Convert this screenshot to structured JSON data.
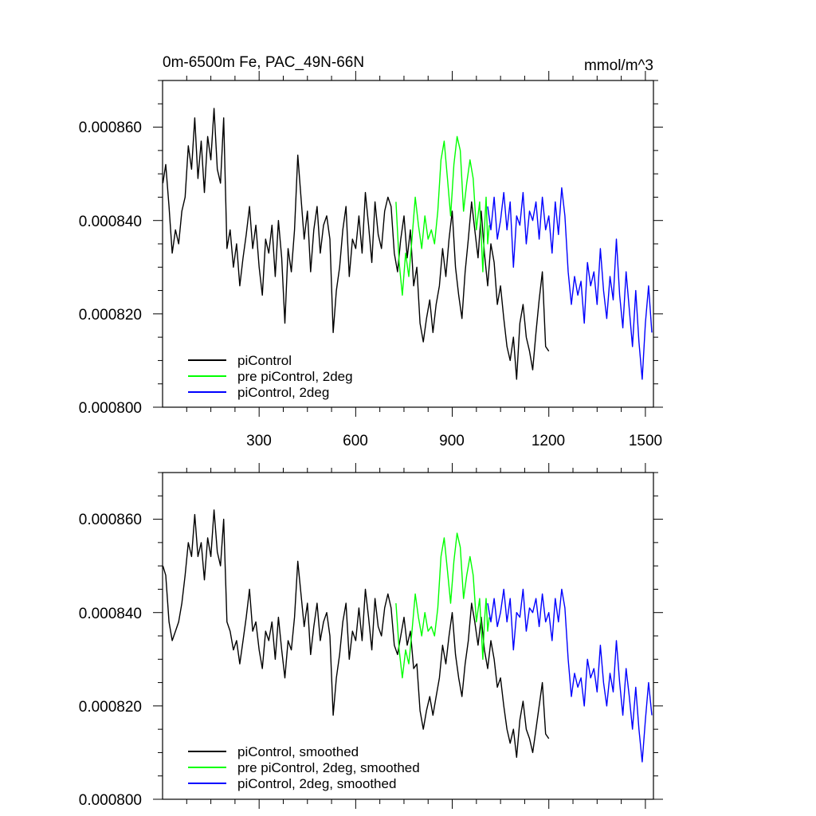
{
  "chart_data": [
    {
      "type": "line",
      "title_left": "0m-6500m Fe, PAC_49N-66N",
      "title_right": "mmol/m^3",
      "xlabel": "",
      "ylabel": "",
      "xlim": [
        0,
        1525
      ],
      "ylim": [
        0.0008,
        0.00087
      ],
      "x_ticks": [
        300,
        600,
        900,
        1200,
        1500
      ],
      "x_tick_labels": [
        "300",
        "600",
        "900",
        "1200",
        "1500"
      ],
      "y_ticks": [
        0.0008,
        0.00082,
        0.00084,
        0.00086
      ],
      "y_tick_labels": [
        "0.000800",
        "0.000820",
        "0.000840",
        "0.000860"
      ],
      "legend_position": "bottom-left",
      "series": [
        {
          "name": "piControl",
          "color": "#000000",
          "x": [
            1,
            10,
            20,
            30,
            40,
            50,
            60,
            70,
            80,
            90,
            100,
            110,
            120,
            130,
            140,
            150,
            160,
            170,
            180,
            190,
            200,
            210,
            220,
            230,
            240,
            250,
            260,
            270,
            280,
            290,
            300,
            310,
            320,
            330,
            340,
            350,
            360,
            370,
            380,
            390,
            400,
            410,
            420,
            430,
            440,
            450,
            460,
            470,
            480,
            490,
            500,
            510,
            520,
            530,
            540,
            550,
            560,
            570,
            580,
            590,
            600,
            610,
            620,
            630,
            640,
            650,
            660,
            670,
            680,
            690,
            700,
            710,
            720,
            730,
            740,
            750,
            760,
            770,
            780,
            790,
            800,
            810,
            820,
            830,
            840,
            850,
            860,
            870,
            880,
            890,
            900,
            910,
            920,
            930,
            940,
            950,
            960,
            970,
            980,
            990,
            1000,
            1010,
            1020,
            1030,
            1040,
            1050,
            1060,
            1070,
            1080,
            1090,
            1100,
            1110,
            1120,
            1130,
            1140,
            1150,
            1160,
            1170,
            1180,
            1190,
            1200
          ],
          "values": [
            0.000848,
            0.000852,
            0.000843,
            0.000833,
            0.000838,
            0.000835,
            0.000842,
            0.000845,
            0.000856,
            0.000851,
            0.000862,
            0.000849,
            0.000857,
            0.000846,
            0.000858,
            0.000853,
            0.000864,
            0.000851,
            0.000848,
            0.000862,
            0.000834,
            0.000838,
            0.00083,
            0.000835,
            0.000826,
            0.000832,
            0.000837,
            0.000843,
            0.000834,
            0.000839,
            0.00083,
            0.000824,
            0.000836,
            0.000833,
            0.000839,
            0.000828,
            0.00084,
            0.000832,
            0.000818,
            0.000834,
            0.000829,
            0.000838,
            0.000854,
            0.000845,
            0.000836,
            0.000842,
            0.000829,
            0.000838,
            0.000843,
            0.000833,
            0.000839,
            0.000841,
            0.000836,
            0.000816,
            0.000825,
            0.00083,
            0.000838,
            0.000843,
            0.000828,
            0.000836,
            0.000834,
            0.000841,
            0.000833,
            0.000846,
            0.000839,
            0.000831,
            0.000844,
            0.000837,
            0.000834,
            0.000842,
            0.000845,
            0.000843,
            0.000833,
            0.000829,
            0.000836,
            0.000841,
            0.000832,
            0.000838,
            0.000826,
            0.00083,
            0.000818,
            0.000814,
            0.000819,
            0.000823,
            0.000816,
            0.000822,
            0.000826,
            0.000834,
            0.000828,
            0.000836,
            0.000842,
            0.00083,
            0.000824,
            0.000819,
            0.000829,
            0.000836,
            0.000844,
            0.000838,
            0.000832,
            0.000842,
            0.000833,
            0.000826,
            0.000835,
            0.000831,
            0.000822,
            0.000826,
            0.000819,
            0.000813,
            0.00081,
            0.000815,
            0.000806,
            0.000818,
            0.000822,
            0.000815,
            0.000812,
            0.000808,
            0.000816,
            0.000823,
            0.000829,
            0.000813,
            0.000812
          ]
        },
        {
          "name": "pre piControl, 2deg",
          "color": "#00ff00",
          "x": [
            725,
            735,
            745,
            755,
            765,
            775,
            785,
            795,
            805,
            815,
            825,
            835,
            845,
            855,
            865,
            875,
            885,
            895,
            905,
            915,
            925,
            935,
            945,
            955,
            965,
            975,
            985,
            995,
            1000,
            1005,
            1010,
            1015
          ],
          "values": [
            0.000844,
            0.000831,
            0.000824,
            0.000833,
            0.000828,
            0.000836,
            0.000845,
            0.000839,
            0.000834,
            0.000841,
            0.000836,
            0.000838,
            0.000835,
            0.000842,
            0.000853,
            0.000857,
            0.000849,
            0.000841,
            0.000852,
            0.000858,
            0.000855,
            0.000842,
            0.000848,
            0.000853,
            0.000849,
            0.000838,
            0.000844,
            0.000829,
            0.000838,
            0.000845,
            0.000835,
            0.000839
          ]
        },
        {
          "name": "piControl, 2deg",
          "color": "#0000ff",
          "x": [
            1010,
            1020,
            1030,
            1040,
            1050,
            1060,
            1070,
            1080,
            1090,
            1100,
            1110,
            1120,
            1130,
            1140,
            1150,
            1160,
            1170,
            1180,
            1190,
            1200,
            1210,
            1220,
            1230,
            1240,
            1250,
            1260,
            1270,
            1280,
            1290,
            1300,
            1310,
            1320,
            1330,
            1340,
            1350,
            1360,
            1370,
            1380,
            1390,
            1400,
            1410,
            1420,
            1430,
            1440,
            1450,
            1460,
            1470,
            1480,
            1490,
            1500,
            1510,
            1520
          ],
          "values": [
            0.000843,
            0.000838,
            0.000845,
            0.000836,
            0.00084,
            0.000846,
            0.000838,
            0.000844,
            0.00083,
            0.000841,
            0.000839,
            0.000846,
            0.000835,
            0.000842,
            0.00084,
            0.000844,
            0.000836,
            0.000845,
            0.000838,
            0.000841,
            0.000833,
            0.000844,
            0.000837,
            0.000847,
            0.000841,
            0.000829,
            0.000822,
            0.000828,
            0.000824,
            0.000827,
            0.000818,
            0.000831,
            0.000826,
            0.000829,
            0.000822,
            0.000834,
            0.000825,
            0.000819,
            0.000828,
            0.000823,
            0.000836,
            0.000824,
            0.000817,
            0.000829,
            0.000821,
            0.000813,
            0.000825,
            0.000814,
            0.000806,
            0.000818,
            0.000826,
            0.000816
          ]
        }
      ]
    },
    {
      "type": "line",
      "xlabel": "",
      "ylabel": "",
      "xlim": [
        0,
        1525
      ],
      "ylim": [
        0.0008,
        0.00087
      ],
      "x_ticks": [
        300,
        600,
        900,
        1200,
        1500
      ],
      "y_ticks": [
        0.0008,
        0.00082,
        0.00084,
        0.00086
      ],
      "y_tick_labels": [
        "0.000800",
        "0.000820",
        "0.000840",
        "0.000860"
      ],
      "legend_position": "bottom-left",
      "series": [
        {
          "name": "piControl, smoothed",
          "color": "#000000",
          "x": [
            1,
            10,
            20,
            30,
            40,
            50,
            60,
            70,
            80,
            90,
            100,
            110,
            120,
            130,
            140,
            150,
            160,
            170,
            180,
            190,
            200,
            210,
            220,
            230,
            240,
            250,
            260,
            270,
            280,
            290,
            300,
            310,
            320,
            330,
            340,
            350,
            360,
            370,
            380,
            390,
            400,
            410,
            420,
            430,
            440,
            450,
            460,
            470,
            480,
            490,
            500,
            510,
            520,
            530,
            540,
            550,
            560,
            570,
            580,
            590,
            600,
            610,
            620,
            630,
            640,
            650,
            660,
            670,
            680,
            690,
            700,
            710,
            720,
            730,
            740,
            750,
            760,
            770,
            780,
            790,
            800,
            810,
            820,
            830,
            840,
            850,
            860,
            870,
            880,
            890,
            900,
            910,
            920,
            930,
            940,
            950,
            960,
            970,
            980,
            990,
            1000,
            1010,
            1020,
            1030,
            1040,
            1050,
            1060,
            1070,
            1080,
            1090,
            1100,
            1110,
            1120,
            1130,
            1140,
            1150,
            1160,
            1170,
            1180,
            1190,
            1200
          ],
          "values": [
            0.00085,
            0.000848,
            0.000838,
            0.000834,
            0.000836,
            0.000838,
            0.000842,
            0.000848,
            0.000855,
            0.000852,
            0.000861,
            0.000852,
            0.000855,
            0.000847,
            0.000856,
            0.000852,
            0.000862,
            0.000853,
            0.00085,
            0.00086,
            0.000838,
            0.000836,
            0.000832,
            0.000834,
            0.000829,
            0.000834,
            0.000839,
            0.000845,
            0.000836,
            0.000838,
            0.000832,
            0.000828,
            0.000836,
            0.000834,
            0.000838,
            0.00083,
            0.000839,
            0.000832,
            0.000826,
            0.000834,
            0.000832,
            0.000839,
            0.000851,
            0.000844,
            0.000837,
            0.000842,
            0.000831,
            0.000837,
            0.000842,
            0.000834,
            0.000838,
            0.00084,
            0.000835,
            0.000818,
            0.000826,
            0.000831,
            0.000838,
            0.000842,
            0.00083,
            0.000836,
            0.000834,
            0.000841,
            0.000834,
            0.000845,
            0.000839,
            0.000832,
            0.000843,
            0.000837,
            0.000835,
            0.000841,
            0.000844,
            0.000841,
            0.000833,
            0.000831,
            0.000835,
            0.000839,
            0.000833,
            0.000836,
            0.000828,
            0.000829,
            0.000819,
            0.000815,
            0.000819,
            0.000822,
            0.000818,
            0.000822,
            0.000826,
            0.000833,
            0.000829,
            0.000835,
            0.00084,
            0.000831,
            0.000826,
            0.000822,
            0.000829,
            0.000834,
            0.000842,
            0.000838,
            0.000833,
            0.000839,
            0.000832,
            0.000828,
            0.000834,
            0.00083,
            0.000824,
            0.000826,
            0.00082,
            0.000815,
            0.000812,
            0.000815,
            0.000809,
            0.000817,
            0.000821,
            0.000815,
            0.000813,
            0.00081,
            0.000815,
            0.00082,
            0.000825,
            0.000814,
            0.000813
          ]
        },
        {
          "name": "pre piControl, 2deg, smoothed",
          "color": "#00ff00",
          "x": [
            725,
            735,
            745,
            755,
            765,
            775,
            785,
            795,
            805,
            815,
            825,
            835,
            845,
            855,
            865,
            875,
            885,
            895,
            905,
            915,
            925,
            935,
            945,
            955,
            965,
            975,
            985,
            995,
            1000,
            1005,
            1010,
            1015
          ],
          "values": [
            0.000842,
            0.000832,
            0.000826,
            0.000832,
            0.000829,
            0.000836,
            0.000844,
            0.000839,
            0.000835,
            0.00084,
            0.000836,
            0.000837,
            0.000835,
            0.000841,
            0.000852,
            0.000856,
            0.000849,
            0.000842,
            0.000851,
            0.000857,
            0.000854,
            0.000843,
            0.000848,
            0.000852,
            0.000848,
            0.000838,
            0.000843,
            0.00083,
            0.000838,
            0.000843,
            0.000836,
            0.000839
          ]
        },
        {
          "name": "piControl, 2deg, smoothed",
          "color": "#0000ff",
          "x": [
            1010,
            1020,
            1030,
            1040,
            1050,
            1060,
            1070,
            1080,
            1090,
            1100,
            1110,
            1120,
            1130,
            1140,
            1150,
            1160,
            1170,
            1180,
            1190,
            1200,
            1210,
            1220,
            1230,
            1240,
            1250,
            1260,
            1270,
            1280,
            1290,
            1300,
            1310,
            1320,
            1330,
            1340,
            1350,
            1360,
            1370,
            1380,
            1390,
            1400,
            1410,
            1420,
            1430,
            1440,
            1450,
            1460,
            1470,
            1480,
            1490,
            1500,
            1510,
            1520
          ],
          "values": [
            0.000842,
            0.000838,
            0.000843,
            0.000837,
            0.00084,
            0.000845,
            0.000838,
            0.000843,
            0.000832,
            0.00084,
            0.000839,
            0.000845,
            0.000836,
            0.000841,
            0.00084,
            0.000843,
            0.000837,
            0.000844,
            0.000838,
            0.00084,
            0.000834,
            0.000843,
            0.000838,
            0.000845,
            0.000841,
            0.00083,
            0.000822,
            0.000827,
            0.000824,
            0.000826,
            0.00082,
            0.00083,
            0.000826,
            0.000828,
            0.000823,
            0.000833,
            0.000825,
            0.00082,
            0.000827,
            0.000823,
            0.000834,
            0.000825,
            0.000818,
            0.000828,
            0.000822,
            0.000815,
            0.000824,
            0.000815,
            0.000808,
            0.000817,
            0.000825,
            0.000818
          ]
        }
      ]
    }
  ]
}
